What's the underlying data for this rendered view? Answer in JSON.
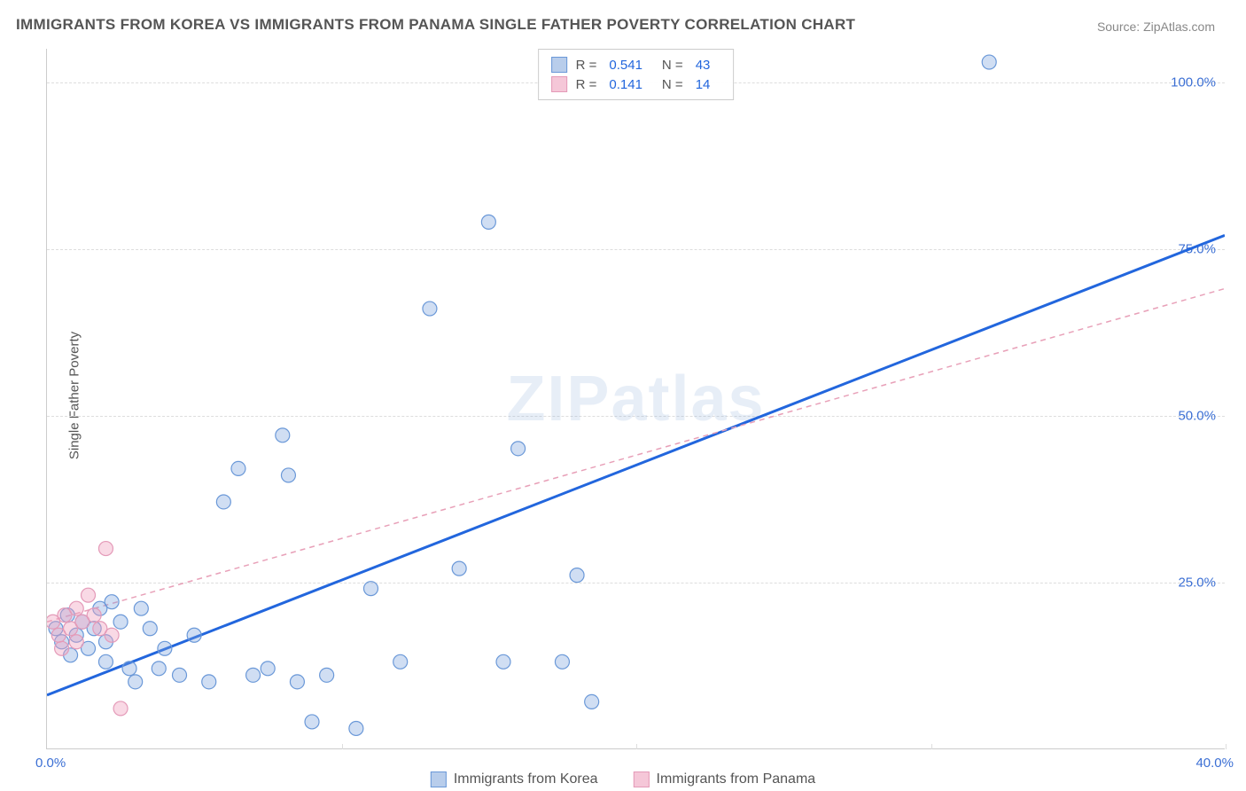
{
  "title": "IMMIGRANTS FROM KOREA VS IMMIGRANTS FROM PANAMA SINGLE FATHER POVERTY CORRELATION CHART",
  "source": "Source: ZipAtlas.com",
  "y_axis_label": "Single Father Poverty",
  "watermark": "ZIPatlas",
  "chart": {
    "type": "scatter",
    "xlim": [
      0,
      40
    ],
    "ylim": [
      0,
      105
    ],
    "x_ticks": [
      0,
      10,
      20,
      30,
      40
    ],
    "y_ticks": [
      25,
      50,
      75,
      100
    ],
    "y_tick_labels": [
      "25.0%",
      "50.0%",
      "75.0%",
      "100.0%"
    ],
    "x_origin_label": "0.0%",
    "x_max_label": "40.0%",
    "background_color": "#ffffff",
    "grid_color": "#dddddd",
    "axis_color": "#cccccc",
    "tick_label_color": "#3b6fd4",
    "axis_label_color": "#555555",
    "axis_label_fontsize": 15,
    "tick_fontsize": 15,
    "marker_radius": 8,
    "marker_stroke_width": 1.2,
    "series": [
      {
        "name": "Immigrants from Korea",
        "color_fill": "rgba(120,160,220,0.35)",
        "color_stroke": "#6a98d8",
        "swatch_fill": "#b8cdeb",
        "swatch_border": "#6a98d8",
        "r_value": "0.541",
        "n_value": "43",
        "trend": {
          "x1": 0,
          "y1": 8,
          "x2": 40,
          "y2": 77,
          "color": "#2266dd",
          "width": 3,
          "dash": ""
        },
        "points": [
          [
            0.3,
            18
          ],
          [
            0.5,
            16
          ],
          [
            0.7,
            20
          ],
          [
            0.8,
            14
          ],
          [
            1.0,
            17
          ],
          [
            1.2,
            19
          ],
          [
            1.4,
            15
          ],
          [
            1.6,
            18
          ],
          [
            1.8,
            21
          ],
          [
            2.0,
            16
          ],
          [
            2.2,
            22
          ],
          [
            2.5,
            19
          ],
          [
            2.8,
            12
          ],
          [
            3.0,
            10
          ],
          [
            3.2,
            21
          ],
          [
            3.5,
            18
          ],
          [
            3.8,
            12
          ],
          [
            4.0,
            15
          ],
          [
            4.5,
            11
          ],
          [
            5.0,
            17
          ],
          [
            5.5,
            10
          ],
          [
            6.0,
            37
          ],
          [
            6.5,
            42
          ],
          [
            7.0,
            11
          ],
          [
            7.5,
            12
          ],
          [
            8.0,
            47
          ],
          [
            8.2,
            41
          ],
          [
            8.5,
            10
          ],
          [
            9.0,
            4
          ],
          [
            9.5,
            11
          ],
          [
            10.5,
            3
          ],
          [
            11.0,
            24
          ],
          [
            12.0,
            13
          ],
          [
            13.0,
            66
          ],
          [
            14.0,
            27
          ],
          [
            15.0,
            79
          ],
          [
            15.5,
            13
          ],
          [
            16.0,
            45
          ],
          [
            17.5,
            13
          ],
          [
            18.0,
            26
          ],
          [
            18.5,
            7
          ],
          [
            32.0,
            103
          ],
          [
            2.0,
            13
          ]
        ]
      },
      {
        "name": "Immigrants from Panama",
        "color_fill": "rgba(240,160,190,0.4)",
        "color_stroke": "#e49ab8",
        "swatch_fill": "#f5c7d8",
        "swatch_border": "#e49ab8",
        "r_value": "0.141",
        "n_value": "14",
        "trend": {
          "x1": 0,
          "y1": 19,
          "x2": 40,
          "y2": 69,
          "color": "#e8a0b8",
          "width": 1.5,
          "dash": "6,5"
        },
        "points": [
          [
            0.2,
            19
          ],
          [
            0.4,
            17
          ],
          [
            0.6,
            20
          ],
          [
            0.8,
            18
          ],
          [
            1.0,
            21
          ],
          [
            1.2,
            19
          ],
          [
            1.4,
            23
          ],
          [
            1.6,
            20
          ],
          [
            1.8,
            18
          ],
          [
            2.0,
            30
          ],
          [
            2.2,
            17
          ],
          [
            2.5,
            6
          ],
          [
            1.0,
            16
          ],
          [
            0.5,
            15
          ]
        ]
      }
    ]
  },
  "stats_box": {
    "r_label": "R =",
    "n_label": "N ="
  },
  "bottom_legend_labels": [
    "Immigrants from Korea",
    "Immigrants from Panama"
  ]
}
